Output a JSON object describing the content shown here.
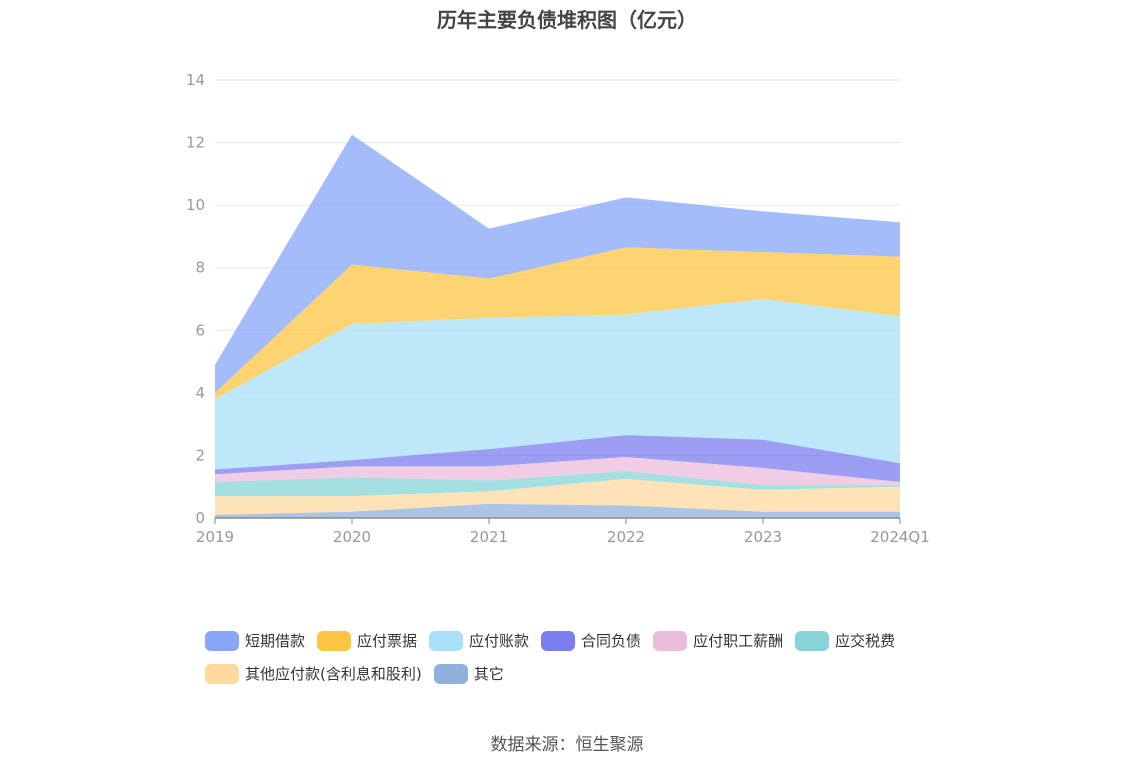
{
  "chart_data": {
    "type": "area",
    "stacked": true,
    "title": "历年主要负债堆积图（亿元）",
    "categories": [
      "2019",
      "2020",
      "2021",
      "2022",
      "2023",
      "2024Q1"
    ],
    "yticks": [
      "0",
      "2",
      "4",
      "6",
      "8",
      "10",
      "12",
      "14"
    ],
    "ylim": [
      0,
      14
    ],
    "grid": true,
    "legend_position": "bottom",
    "series": [
      {
        "name": "其它",
        "color": "#8fb0dd",
        "values": [
          0.1,
          0.2,
          0.45,
          0.4,
          0.2,
          0.2
        ]
      },
      {
        "name": "其他应付款(含利息和股利)",
        "color": "#fdd9a0",
        "values": [
          0.6,
          0.5,
          0.4,
          0.85,
          0.7,
          0.8
        ]
      },
      {
        "name": "应交税费",
        "color": "#86d4d8",
        "values": [
          0.45,
          0.6,
          0.35,
          0.25,
          0.15,
          0.05
        ]
      },
      {
        "name": "应付职工薪酬",
        "color": "#ebbcdc",
        "values": [
          0.25,
          0.35,
          0.45,
          0.45,
          0.55,
          0.1
        ]
      },
      {
        "name": "合同负债",
        "color": "#7b7ef0",
        "values": [
          0.15,
          0.2,
          0.55,
          0.7,
          0.9,
          0.6
        ]
      },
      {
        "name": "应付账款",
        "color": "#a9dff8",
        "values": [
          2.25,
          4.35,
          4.2,
          3.85,
          4.5,
          4.7
        ]
      },
      {
        "name": "应付票据",
        "color": "#fcc642",
        "values": [
          0.2,
          1.9,
          1.25,
          2.15,
          1.5,
          1.9
        ]
      },
      {
        "name": "短期借款",
        "color": "#87a6f8",
        "values": [
          0.9,
          4.15,
          1.6,
          1.6,
          1.3,
          1.1
        ]
      }
    ]
  },
  "legend": [
    {
      "label": "短期借款",
      "color": "#87a6f8"
    },
    {
      "label": "应付票据",
      "color": "#fcc642"
    },
    {
      "label": "应付账款",
      "color": "#a9dff8"
    },
    {
      "label": "合同负债",
      "color": "#7b7ef0"
    },
    {
      "label": "应付职工薪酬",
      "color": "#ebbcdc"
    },
    {
      "label": "应交税费",
      "color": "#86d4d8"
    },
    {
      "label": "其他应付款(含利息和股利)",
      "color": "#fdd9a0"
    },
    {
      "label": "其它",
      "color": "#8fb0dd"
    }
  ],
  "source": "数据来源：恒生聚源"
}
